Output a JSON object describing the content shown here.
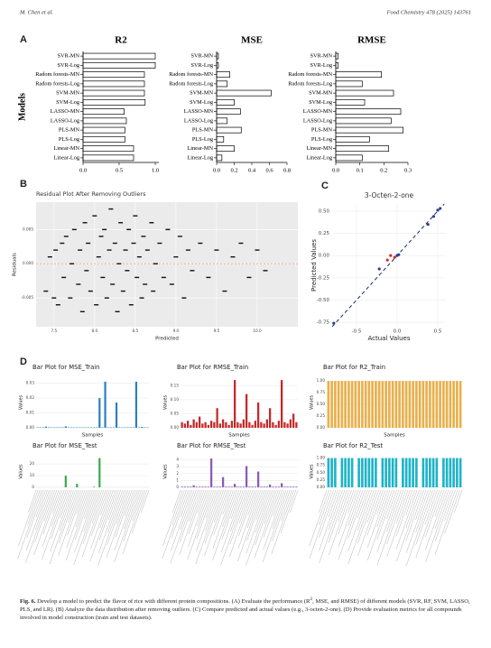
{
  "header": {
    "authors": "M. Chen et al.",
    "journal": "Food Chemistry 478 (2025) 143761"
  },
  "panel_labels": [
    "A",
    "B",
    "C",
    "D"
  ],
  "caption": {
    "label": "Fig. 6.",
    "text_before": "Develop a model to predict the flavor of rice with different protein compositions. (A) Evaluate the performance (R",
    "sup": "2",
    "text_after": ", MSE, and RMSE) of different models (SVR, RF, SVM, LASSO, PLS, and LR). (B) Analyze the data distribution after removing outliers. (C) Compare predicted and actual values (e.g., 3-octen-2-one). (D) Provide evaluation metrics for all compounds involved in model construction (train and test datasets)."
  },
  "chart_data": [
    {
      "type": "barh",
      "title": "R2",
      "ylabel": "Models",
      "categories": [
        "SVR-MN",
        "SVR-Log",
        "Radom forests-MN",
        "Radom forests-Log",
        "SVM-MN",
        "SVM-Log",
        "LASSO-MN",
        "LASSO-Log",
        "PLS-MN",
        "PLS-Log",
        "Linear-MN",
        "Linear-Log"
      ],
      "values": [
        1.0,
        1.0,
        0.85,
        0.85,
        0.85,
        0.86,
        0.57,
        0.6,
        0.58,
        0.58,
        0.7,
        0.7
      ],
      "xlim": [
        0,
        1.05
      ],
      "xticks": [
        {
          "value": 0,
          "label": "0.0"
        },
        0.5,
        {
          "value": 1,
          "label": "1.0"
        }
      ],
      "color": "#ffffff"
    },
    {
      "type": "barh",
      "title": "MSE",
      "categories": [
        "SVR-MN",
        "SVR-Log",
        "Radom forests-MN",
        "Radom forests-Log",
        "SVM-MN",
        "SVM-Log",
        "LASSO-MN",
        "LASSO-Log",
        "PLS-MN",
        "PLS-Log",
        "Linear-MN",
        "Linear-Log"
      ],
      "values": [
        0.02,
        0.02,
        0.15,
        0.12,
        0.62,
        0.2,
        0.27,
        0.12,
        0.28,
        0.08,
        0.2,
        0.06
      ],
      "xlim": [
        0,
        0.8
      ],
      "xticks": [
        {
          "value": 0,
          "label": "0.0"
        },
        0.2,
        0.4,
        0.6,
        0.8
      ],
      "color": "#ffffff"
    },
    {
      "type": "barh",
      "title": "RMSE",
      "categories": [
        "SVR-MN",
        "SVR-Log",
        "Radom forests-MN",
        "Radom forests-Log",
        "SVM-MN",
        "SVM-Log",
        "LASSO-MN",
        "LASSO-Log",
        "PLS-MN",
        "PLS-Log",
        "Linear-MN",
        "Linear-Log"
      ],
      "values": [
        0.01,
        0.01,
        0.19,
        0.11,
        0.24,
        0.12,
        0.27,
        0.23,
        0.28,
        0.14,
        0.22,
        0.11
      ],
      "xlim": [
        0,
        0.3
      ],
      "xticks": [
        {
          "value": 0,
          "label": "0.0"
        },
        0.1,
        0.2,
        0.3
      ],
      "color": "#ffffff"
    },
    {
      "type": "scatter",
      "title": "Residual Plot After Removing Outliers",
      "xlabel": "Predicted",
      "ylabel": "Residuals",
      "marker": "dash",
      "background": "#ebebeb",
      "grid_color": "#ffffff",
      "zero_line_color": "#f4a090",
      "color": "#111111",
      "x": [
        7.4,
        7.45,
        7.5,
        7.52,
        7.55,
        7.6,
        7.62,
        7.65,
        7.7,
        7.72,
        7.75,
        7.8,
        7.82,
        7.85,
        7.88,
        7.9,
        7.92,
        7.95,
        8.0,
        8.02,
        8.05,
        8.08,
        8.1,
        8.12,
        8.15,
        8.18,
        8.2,
        8.22,
        8.25,
        8.28,
        8.3,
        8.32,
        8.35,
        8.38,
        8.4,
        8.42,
        8.45,
        8.48,
        8.5,
        8.52,
        8.55,
        8.58,
        8.6,
        8.62,
        8.65,
        8.7,
        8.72,
        8.75,
        8.8,
        8.85,
        8.9,
        8.95,
        9.0,
        9.05,
        9.1,
        9.15,
        9.2,
        9.3,
        9.4,
        9.5,
        9.6,
        9.7,
        9.8,
        9.9,
        10.0,
        10.1
      ],
      "y": [
        -0.004,
        0.001,
        -0.005,
        0.002,
        -0.006,
        0.003,
        -0.002,
        0.004,
        -0.005,
        0.0,
        0.005,
        -0.003,
        0.002,
        -0.007,
        0.006,
        -0.001,
        0.003,
        -0.004,
        0.007,
        -0.006,
        0.001,
        0.004,
        -0.002,
        0.005,
        -0.005,
        0.002,
        0.008,
        -0.003,
        0.003,
        -0.007,
        0.0,
        0.006,
        -0.004,
        0.002,
        -0.001,
        0.005,
        -0.006,
        0.003,
        0.007,
        -0.002,
        0.001,
        -0.005,
        0.004,
        -0.003,
        0.002,
        0.006,
        -0.004,
        0.0,
        0.003,
        -0.002,
        0.005,
        -0.003,
        0.001,
        0.004,
        -0.005,
        0.002,
        -0.001,
        0.003,
        -0.002,
        0.002,
        -0.004,
        0.001,
        0.003,
        -0.002,
        0.002,
        -0.001
      ],
      "xlim": [
        7.28,
        10.5
      ],
      "xticks": [
        7.5,
        {
          "value": 8,
          "label": "8.0"
        },
        8.5,
        {
          "value": 9,
          "label": "9.0"
        },
        9.5,
        {
          "value": 10,
          "label": "10.0"
        }
      ],
      "ylim": [
        -0.0092,
        0.009
      ],
      "yticks": [
        -0.005,
        {
          "value": 0,
          "label": "0.000"
        },
        0.005
      ]
    },
    {
      "type": "scatter",
      "title": "3-Octen-2-one",
      "xlabel": "Actual Values",
      "ylabel": "Predicted Values",
      "marker": "circle",
      "background": "#ffffff",
      "grid_color": "#ececec",
      "reference_line": "dashed",
      "x": [
        -0.78,
        -0.22,
        -0.12,
        -0.08,
        -0.03,
        0.0,
        0.02,
        0.38,
        0.45,
        0.5,
        0.53
      ],
      "y": [
        -0.76,
        -0.15,
        -0.05,
        0.0,
        -0.02,
        0.0,
        0.01,
        0.35,
        0.44,
        0.51,
        0.53
      ],
      "point_colors": [
        "#2a3f8f",
        "#2a3f8f",
        "#d62728",
        "#d62728",
        "#d62728",
        "#2a3f8f",
        "#2a3f8f",
        "#2a3f8f",
        "#2a3f8f",
        "#2a3f8f",
        "#2a3f8f"
      ],
      "xlim": [
        -0.8,
        0.6
      ],
      "xticks": [
        -0.5,
        {
          "value": 0,
          "label": "0.0"
        },
        0.5
      ],
      "ylim": [
        -0.8,
        0.58
      ],
      "yticks": [
        -0.75,
        {
          "value": -0.5,
          "label": "-0.50"
        },
        -0.25,
        {
          "value": 0,
          "label": "0.00"
        },
        0.25,
        {
          "value": 0.5,
          "label": "0.50"
        }
      ]
    },
    {
      "type": "bar",
      "title": "Bar Plot for MSE_Train",
      "xlabel": "Samples",
      "ylabel": "Values",
      "color": "#2a7fbf",
      "values": [
        0.0003,
        0.0003,
        0.0003,
        0.0008,
        0.0003,
        0.0003,
        0.0003,
        0.0003,
        0.0003,
        0.0003,
        0.001,
        0.0003,
        0.0003,
        0.0003,
        0.0003,
        0.0003,
        0.0003,
        0.0003,
        0.0003,
        0.0003,
        0.0003,
        0.0003,
        0.02,
        0.0003,
        0.031,
        0.0003,
        0.0003,
        0.0003,
        0.017,
        0.0003,
        0.0003,
        0.0003,
        0.0003,
        0.0003,
        0.0003,
        0.031,
        0.0003,
        0.0006,
        0.0003,
        0.0003
      ],
      "ylim": [
        0,
        0.034
      ],
      "yticks": [
        {
          "value": 0,
          "label": "0.00"
        },
        0.01,
        0.02,
        0.03
      ]
    },
    {
      "type": "bar",
      "title": "Bar Plot for RMSE_Train",
      "xlabel": "Samples",
      "ylabel": "Values",
      "color": "#c62828",
      "values": [
        0.02,
        0.015,
        0.025,
        0.01,
        0.03,
        0.02,
        0.04,
        0.015,
        0.02,
        0.01,
        0.025,
        0.02,
        0.07,
        0.015,
        0.03,
        0.02,
        0.01,
        0.025,
        0.17,
        0.02,
        0.015,
        0.03,
        0.12,
        0.02,
        0.01,
        0.025,
        0.09,
        0.02,
        0.015,
        0.03,
        0.07,
        0.02,
        0.01,
        0.025,
        0.17,
        0.02,
        0.015,
        0.03,
        0.05,
        0.02
      ],
      "ylim": [
        0,
        0.18
      ],
      "yticks": [
        {
          "value": 0,
          "label": "0.00"
        },
        0.05,
        {
          "value": 0.1,
          "label": "0.10"
        },
        0.15
      ]
    },
    {
      "type": "bar",
      "title": "Bar Plot for R2_Train",
      "xlabel": "Samples",
      "ylabel": "Values",
      "color": "#e8b04a",
      "values": [
        1,
        1,
        1,
        1,
        1,
        1,
        1,
        1,
        1,
        1,
        1,
        1,
        1,
        1,
        1,
        1,
        1,
        1,
        1,
        1,
        1,
        1,
        1,
        1,
        1,
        1,
        1,
        1,
        1,
        1,
        1,
        1,
        1,
        1,
        1,
        1,
        1,
        1,
        1,
        1
      ],
      "ylim": [
        0,
        1.08
      ],
      "yticks": [
        {
          "value": 0,
          "label": "0.00"
        },
        0.25,
        {
          "value": 0.5,
          "label": "0.50"
        },
        0.75,
        {
          "value": 1,
          "label": "1.00"
        }
      ]
    },
    {
      "type": "bar",
      "title": "Bar Plot for MSE_Test",
      "ylabel": "Values",
      "color": "#3aa84a",
      "values": [
        0.05,
        0.05,
        0.05,
        0.05,
        0.05,
        0.05,
        0.05,
        0.05,
        0.05,
        0.05,
        10,
        0.05,
        0.05,
        0.05,
        3,
        0.05,
        0.05,
        0.05,
        0.05,
        0.05,
        0.5,
        0.05,
        25,
        0.05,
        0.05,
        0.05,
        0.05,
        0.05,
        0.05,
        0.05,
        0.05,
        0.05,
        0.05,
        0.05,
        0.05,
        0.05,
        0.05,
        0.05,
        0.05,
        0.05
      ],
      "ylim": [
        0,
        27
      ],
      "yticks": [
        0,
        10,
        20
      ]
    },
    {
      "type": "bar",
      "title": "Bar Plot for RMSE_Test",
      "ylabel": "Values",
      "color": "#8a5cb8",
      "values": [
        0.1,
        0.1,
        0.1,
        0.1,
        0.3,
        0.1,
        0.1,
        0.1,
        0.1,
        0.1,
        4.2,
        0.1,
        0.1,
        0.1,
        1.5,
        0.1,
        0.1,
        0.1,
        0.5,
        0.1,
        0.1,
        0.1,
        3.1,
        0.1,
        0.1,
        0.1,
        2.3,
        0.1,
        0.1,
        0.1,
        0.4,
        0.1,
        0.1,
        0.1,
        0.6,
        0.1,
        0.1,
        0.1,
        0.1,
        0.1
      ],
      "ylim": [
        0,
        4.6
      ],
      "yticks": [
        0,
        1,
        2,
        3,
        4
      ]
    },
    {
      "type": "bar",
      "title": "Bar Plot for R2_Test",
      "ylabel": "Values",
      "color": "#1fb3c8",
      "values": [
        1,
        1,
        1,
        0,
        1,
        1,
        1,
        1,
        0,
        1,
        1,
        1,
        1,
        1,
        1,
        0,
        1,
        1,
        1,
        1,
        1,
        0,
        1,
        1,
        1,
        1,
        1,
        0,
        1,
        1,
        1,
        1,
        1,
        0,
        1,
        1,
        1,
        1,
        1,
        1
      ],
      "ylim": [
        0,
        1.08
      ],
      "yticks": [
        {
          "value": 0,
          "label": "0.00"
        },
        0.25,
        {
          "value": 0.5,
          "label": "0.50"
        },
        0.75,
        {
          "value": 1,
          "label": "1.00"
        }
      ]
    }
  ]
}
